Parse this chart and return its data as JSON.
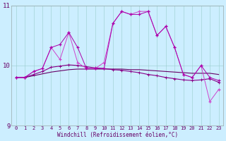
{
  "xlabel": "Windchill (Refroidissement éolien,°C)",
  "xlim": [
    -0.5,
    23.5
  ],
  "ylim": [
    9,
    11
  ],
  "yticks": [
    9,
    10,
    11
  ],
  "xticks": [
    0,
    1,
    2,
    3,
    4,
    5,
    6,
    7,
    8,
    9,
    10,
    11,
    12,
    13,
    14,
    15,
    16,
    17,
    18,
    19,
    20,
    21,
    22,
    23
  ],
  "bg_color": "#cceeff",
  "grid_color": "#99cccc",
  "line_color_volatile": "#cc44cc",
  "line_color_smooth": "#880088",
  "line_color_mean": "#aa00aa",
  "line_color_trend": "#660066",
  "series_volatile": [
    9.8,
    9.8,
    9.9,
    9.95,
    10.3,
    10.1,
    10.55,
    10.05,
    9.95,
    9.95,
    10.05,
    10.7,
    10.9,
    10.85,
    10.9,
    10.9,
    10.5,
    10.65,
    10.3,
    9.85,
    9.8,
    10.0,
    9.4,
    9.6
  ],
  "series_smooth": [
    9.8,
    9.8,
    9.9,
    9.95,
    10.3,
    10.35,
    10.55,
    10.3,
    9.95,
    9.95,
    9.95,
    10.7,
    10.9,
    10.85,
    10.85,
    10.9,
    10.5,
    10.65,
    10.3,
    9.85,
    9.8,
    10.0,
    9.8,
    9.75
  ],
  "series_mean": [
    9.8,
    9.8,
    9.85,
    9.9,
    9.97,
    9.99,
    10.01,
    10.0,
    9.98,
    9.96,
    9.95,
    9.93,
    9.92,
    9.9,
    9.88,
    9.85,
    9.83,
    9.8,
    9.78,
    9.76,
    9.75,
    9.76,
    9.78,
    9.72
  ],
  "series_trend": [
    9.8,
    9.8,
    9.83,
    9.86,
    9.89,
    9.91,
    9.93,
    9.94,
    9.94,
    9.94,
    9.94,
    9.94,
    9.94,
    9.93,
    9.93,
    9.92,
    9.91,
    9.9,
    9.89,
    9.88,
    9.87,
    9.87,
    9.87,
    9.85
  ]
}
